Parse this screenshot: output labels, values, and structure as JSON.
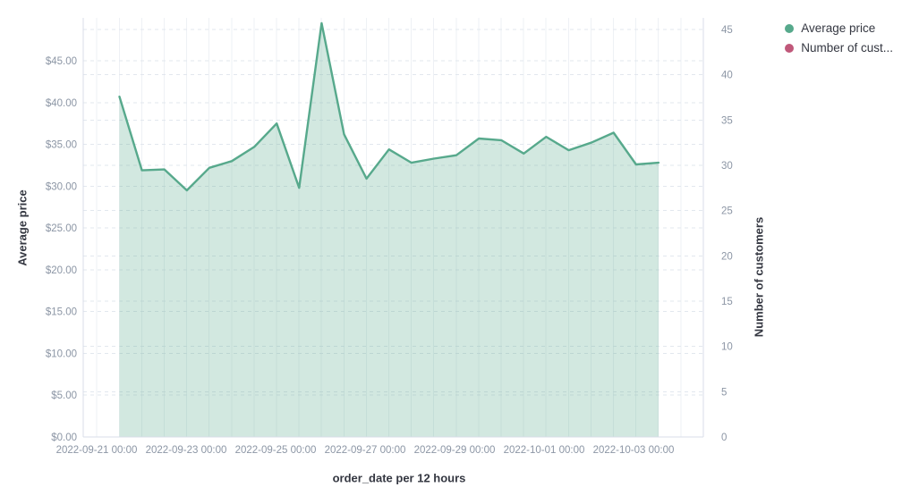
{
  "chart_data": {
    "type": "area",
    "title": "",
    "background": "#ffffff",
    "grid": true,
    "legend_position": "top-right",
    "x_axis": {
      "label": "order_date per 12 hours",
      "tick_labels": [
        "2022-09-21 00:00",
        "2022-09-23 00:00",
        "2022-09-25 00:00",
        "2022-09-27 00:00",
        "2022-09-29 00:00",
        "2022-10-01 00:00",
        "2022-10-03 00:00"
      ]
    },
    "y_axis_left": {
      "label": "Average price",
      "tick_labels": [
        "$0.00",
        "$5.00",
        "$10.00",
        "$15.00",
        "$20.00",
        "$25.00",
        "$30.00",
        "$35.00",
        "$40.00",
        "$45.00"
      ],
      "ylim": [
        0,
        50
      ]
    },
    "y_axis_right": {
      "label": "Number of customers",
      "tick_labels": [
        "0",
        "5",
        "10",
        "15",
        "20",
        "25",
        "30",
        "35",
        "40",
        "45"
      ],
      "ylim": [
        0,
        46
      ]
    },
    "legend": [
      {
        "label": "Average price",
        "color": "#57A98C"
      },
      {
        "label": "Number of cust...",
        "color": "#C0587A"
      }
    ],
    "series": [
      {
        "name": "Average price",
        "axis": "left",
        "color": "#57A98C",
        "fill": "rgba(87,169,140,0.27)",
        "x": [
          "2022-09-21 12:00",
          "2022-09-22 00:00",
          "2022-09-22 12:00",
          "2022-09-23 00:00",
          "2022-09-23 12:00",
          "2022-09-24 00:00",
          "2022-09-24 12:00",
          "2022-09-25 00:00",
          "2022-09-25 12:00",
          "2022-09-26 00:00",
          "2022-09-26 12:00",
          "2022-09-27 00:00",
          "2022-09-27 12:00",
          "2022-09-28 00:00",
          "2022-09-28 12:00",
          "2022-09-29 00:00",
          "2022-09-29 12:00",
          "2022-09-30 00:00",
          "2022-09-30 12:00",
          "2022-10-01 00:00",
          "2022-10-01 12:00",
          "2022-10-02 00:00",
          "2022-10-02 12:00",
          "2022-10-03 00:00",
          "2022-10-03 12:00"
        ],
        "values": [
          40.7,
          31.9,
          32.0,
          29.5,
          32.2,
          33.0,
          34.7,
          37.5,
          29.8,
          49.5,
          36.2,
          30.9,
          34.4,
          32.8,
          33.3,
          33.7,
          35.7,
          35.5,
          33.9,
          35.9,
          34.3,
          35.2,
          36.4,
          32.6,
          32.8
        ]
      },
      {
        "name": "Number of customers",
        "axis": "right",
        "color": "#C0587A",
        "values": []
      }
    ],
    "style": {
      "tick_label_color": "#8C96A5",
      "axis_line_color": "#D8DEE8",
      "h_grid_color": "#E2E7EE",
      "v_grid_color": "#EEF1F5"
    }
  }
}
